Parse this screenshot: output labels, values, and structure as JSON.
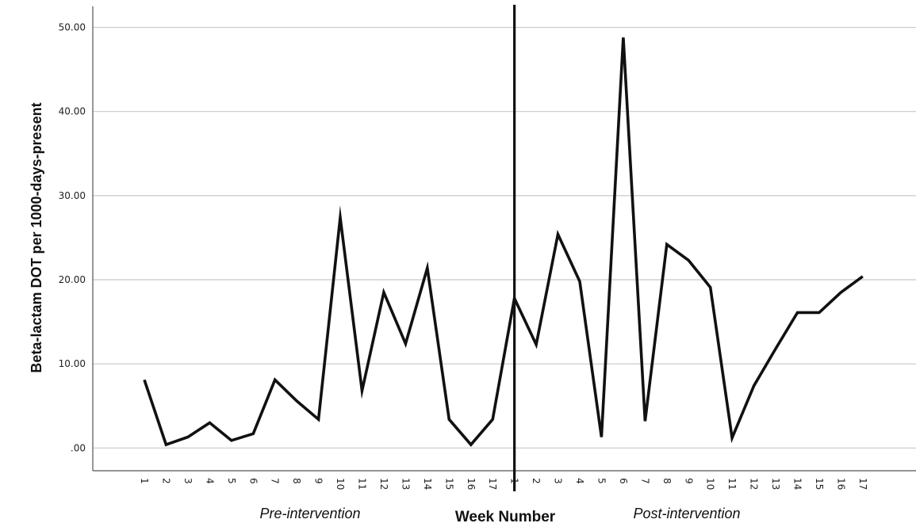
{
  "chart_data": {
    "type": "line",
    "ylabel": "Beta-lactam DOT per 1000-days-present",
    "xlabel": "Week Number",
    "phase_labels": [
      "Pre-intervention",
      "Post-intervention"
    ],
    "y_ticks": [
      ".00",
      "10.00",
      "20.00",
      "30.00",
      "40.00",
      "50.00"
    ],
    "ylim": [
      -2.7,
      52.5
    ],
    "grid": "horizontal",
    "categories": [
      "1",
      "2",
      "3",
      "4",
      "5",
      "6",
      "7",
      "8",
      "9",
      "10",
      "11",
      "12",
      "13",
      "14",
      "15",
      "16",
      "17",
      "1",
      "2",
      "3",
      "4",
      "5",
      "6",
      "7",
      "8",
      "9",
      "10",
      "11",
      "12",
      "13",
      "14",
      "15",
      "16",
      "17"
    ],
    "series": [
      {
        "values": [
          8.1,
          0.4,
          1.3,
          3.0,
          0.9,
          1.7,
          8.1,
          5.6,
          3.4,
          27.4,
          6.8,
          18.5,
          12.4,
          21.4,
          3.4,
          0.4,
          3.4,
          17.8,
          12.3,
          25.4,
          19.8,
          1.3,
          48.8,
          3.2,
          24.2,
          22.3,
          19.1,
          1.2,
          7.4,
          11.8,
          16.1,
          16.1,
          18.5,
          20.4
        ]
      }
    ],
    "intervention_after_index": 16,
    "colors": {
      "line": "#111111",
      "grid": "#c8c8c8",
      "axis": "#555555"
    }
  }
}
